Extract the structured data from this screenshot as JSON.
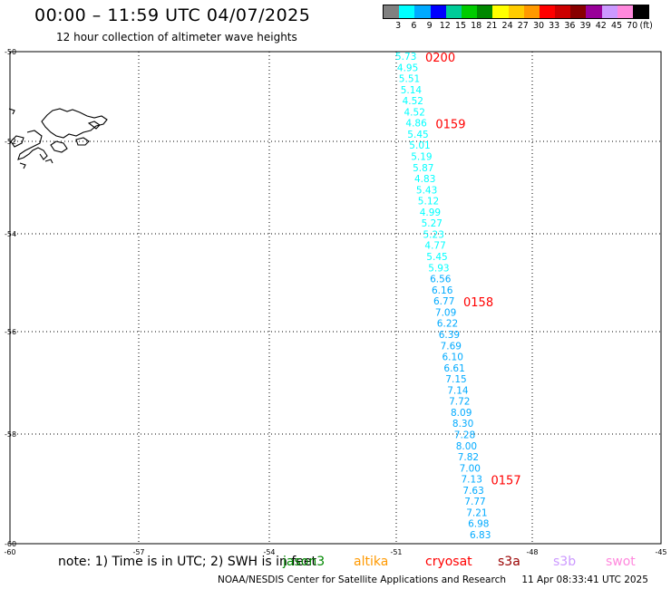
{
  "header": {
    "title": "00:00 – 11:59 UTC 04/07/2025",
    "subtitle": "12 hour collection of altimeter wave heights"
  },
  "legend": {
    "colors": [
      "#808080",
      "#00ffff",
      "#00aaff",
      "#0000ff",
      "#00cc99",
      "#00cc00",
      "#008800",
      "#ffff00",
      "#ffcc00",
      "#ff9900",
      "#ff0000",
      "#cc0000",
      "#880000",
      "#990099",
      "#cc99ff",
      "#ff88dd",
      "#000000"
    ],
    "labels": [
      "3",
      "6",
      "9",
      "12",
      "15",
      "18",
      "21",
      "24",
      "27",
      "30",
      "33",
      "36",
      "39",
      "42",
      "45",
      "70",
      "(ft)"
    ]
  },
  "axes": {
    "lat_labels": [
      "-50",
      "-52",
      "-54",
      "-56",
      "-58",
      "-60"
    ],
    "lon_labels": [
      "-60",
      "-57",
      "-54",
      "-51",
      "-48",
      "-45"
    ]
  },
  "track": {
    "heights": [
      "5.73",
      "4.95",
      "5.51",
      "5.14",
      "4.52",
      "4.52",
      "4.86",
      "5.45",
      "5.01",
      "5.19",
      "5.87",
      "4.83",
      "5.43",
      "5.12",
      "4.99",
      "5.27",
      "5.23",
      "4.77",
      "5.45",
      "5.93",
      "6.56",
      "6.16",
      "6.77",
      "7.09",
      "6.22",
      "6.39",
      "7.69",
      "6.10",
      "6.61",
      "7.15",
      "7.14",
      "7.72",
      "8.09",
      "8.30",
      "7.28",
      "8.00",
      "7.82",
      "7.00",
      "7.13",
      "7.63",
      "7.77",
      "7.21",
      "6.98",
      "6.83"
    ],
    "time_marks": [
      {
        "label": "0200",
        "at_index": 0
      },
      {
        "label": "0159",
        "at_index": 6
      },
      {
        "label": "0158",
        "at_index": 22
      },
      {
        "label": "0157",
        "at_index": 38
      }
    ]
  },
  "note": "note: 1) Time is in UTC; 2) SWH is in feet",
  "missions": [
    {
      "name": "jason3",
      "color": "#008800"
    },
    {
      "name": "altika",
      "color": "#ff9900"
    },
    {
      "name": "cryosat",
      "color": "#ff0000"
    },
    {
      "name": "s3a",
      "color": "#990000"
    },
    {
      "name": "s3b",
      "color": "#cc99ff"
    },
    {
      "name": "swot",
      "color": "#ff88dd"
    }
  ],
  "footer": {
    "credit": "NOAA/NESDIS Center for Satellite Applications and Research",
    "timestamp": "11 Apr 08:33:41 UTC 2025"
  }
}
